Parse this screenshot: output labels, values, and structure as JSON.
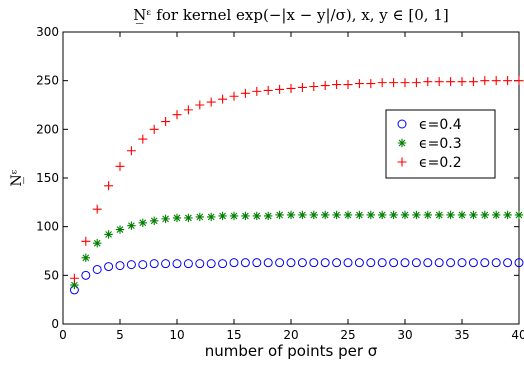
{
  "chart_data": {
    "type": "scatter",
    "title": "N̲ᵋ for kernel exp(−|x − y|/σ), x, y ∈ [0, 1]",
    "xlabel": "number of points per σ",
    "ylabel": "N̲ᵋ",
    "xlim": [
      0,
      40
    ],
    "ylim": [
      0,
      300
    ],
    "xticks": [
      0,
      5,
      10,
      15,
      20,
      25,
      30,
      35,
      40
    ],
    "yticks": [
      0,
      50,
      100,
      150,
      200,
      250,
      300
    ],
    "grid": false,
    "legend_position": "right",
    "x": [
      1,
      2,
      3,
      4,
      5,
      6,
      7,
      8,
      9,
      10,
      11,
      12,
      13,
      14,
      15,
      16,
      17,
      18,
      19,
      20,
      21,
      22,
      23,
      24,
      25,
      26,
      27,
      28,
      29,
      30,
      31,
      32,
      33,
      34,
      35,
      36,
      37,
      38,
      39,
      40
    ],
    "series": [
      {
        "name": "ϵ=0.4",
        "marker": "circle",
        "color": "#0000ff",
        "values": [
          35,
          50,
          56,
          59,
          60,
          61,
          61,
          62,
          62,
          62,
          62,
          62,
          62,
          62,
          63,
          63,
          63,
          63,
          63,
          63,
          63,
          63,
          63,
          63,
          63,
          63,
          63,
          63,
          63,
          63,
          63,
          63,
          63,
          63,
          63,
          63,
          63,
          63,
          63,
          63
        ]
      },
      {
        "name": "ϵ=0.3",
        "marker": "asterisk",
        "color": "#008000",
        "values": [
          40,
          68,
          83,
          92,
          97,
          101,
          104,
          106,
          108,
          109,
          109,
          110,
          110,
          111,
          111,
          111,
          111,
          111,
          112,
          112,
          112,
          112,
          112,
          112,
          112,
          112,
          112,
          112,
          112,
          112,
          112,
          112,
          112,
          112,
          112,
          112,
          112,
          112,
          112,
          112
        ]
      },
      {
        "name": "ϵ=0.2",
        "marker": "plus",
        "color": "#ff0000",
        "values": [
          47,
          85,
          118,
          142,
          162,
          178,
          190,
          200,
          208,
          215,
          220,
          225,
          228,
          231,
          234,
          237,
          239,
          240,
          241,
          242,
          243,
          244,
          245,
          246,
          246,
          247,
          247,
          248,
          248,
          248,
          248,
          249,
          249,
          249,
          249,
          249,
          250,
          250,
          250,
          250
        ]
      }
    ]
  }
}
